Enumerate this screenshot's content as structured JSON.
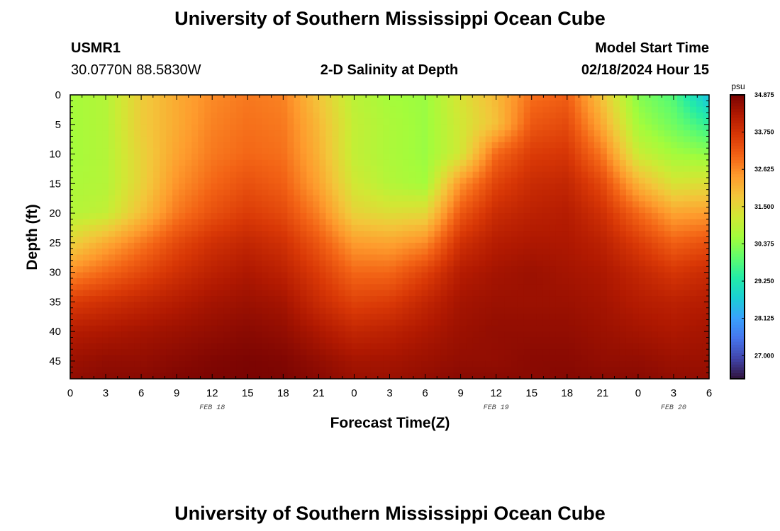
{
  "header": {
    "title": "University of Southern Mississippi Ocean Cube",
    "station_id": "USMR1",
    "station_coords": "30.0770N  88.5830W",
    "plot_title": "2-D Salinity at Depth",
    "start_time_label": "Model Start Time",
    "start_time_value": "02/18/2024 Hour 15"
  },
  "footer": {
    "title": "University of Southern Mississippi Ocean Cube"
  },
  "chart_data": {
    "type": "heatmap",
    "title": "2-D Salinity at Depth",
    "xlabel": "Forecast Time(Z)",
    "ylabel": "Depth (ft)",
    "x_ticks": [
      "0",
      "3",
      "6",
      "9",
      "12",
      "15",
      "18",
      "21",
      "0",
      "3",
      "6",
      "9",
      "12",
      "15",
      "18",
      "21",
      "0",
      "3",
      "6"
    ],
    "date_labels": [
      {
        "text": "FEB 18",
        "hour": 12
      },
      {
        "text": "FEB 19",
        "hour": 36
      },
      {
        "text": "FEB 20",
        "hour": 51
      }
    ],
    "x_range_hours": [
      0,
      54
    ],
    "y_ticks": [
      0,
      5,
      10,
      15,
      20,
      25,
      30,
      35,
      40,
      45
    ],
    "ylim": [
      48,
      0
    ],
    "colorbar": {
      "unit": "psu",
      "vmin": 26.3,
      "vmax": 34.875,
      "labels": [
        "34.875",
        "33.750",
        "32.625",
        "31.500",
        "30.375",
        "29.250",
        "28.125",
        "27.000"
      ],
      "label_values": [
        34.875,
        33.75,
        32.625,
        31.5,
        30.375,
        29.25,
        28.125,
        27.0
      ]
    },
    "colormap": [
      "#30123b",
      "#4145ab",
      "#4675ed",
      "#39a2fc",
      "#1bcfd4",
      "#24eca6",
      "#61fc6c",
      "#a4fc3b",
      "#d1e834",
      "#f3c63a",
      "#fe9b2d",
      "#f36315",
      "#d93806",
      "#b11901",
      "#7a0402"
    ],
    "x_hours": [
      0,
      3,
      6,
      9,
      12,
      15,
      18,
      21,
      24,
      27,
      30,
      33,
      36,
      39,
      42,
      45,
      48,
      51,
      54
    ],
    "depths_ft": [
      0,
      5,
      10,
      15,
      20,
      25,
      30,
      35,
      40,
      45,
      48
    ],
    "salinity_psu": [
      [
        30.6,
        30.8,
        31.7,
        32.2,
        32.6,
        32.8,
        32.7,
        31.8,
        30.9,
        30.6,
        30.5,
        31.3,
        32.0,
        32.9,
        33.1,
        31.8,
        30.3,
        29.8,
        28.5
      ],
      [
        30.6,
        30.8,
        31.7,
        32.2,
        32.7,
        32.9,
        32.8,
        32.0,
        31.0,
        30.7,
        30.5,
        31.2,
        31.9,
        33.2,
        33.4,
        32.2,
        30.6,
        30.1,
        29.5
      ],
      [
        30.6,
        30.8,
        31.6,
        32.3,
        32.8,
        33.0,
        32.9,
        32.1,
        31.0,
        30.7,
        30.5,
        31.2,
        33.0,
        33.6,
        33.7,
        32.8,
        31.1,
        30.6,
        30.4
      ],
      [
        30.7,
        30.8,
        31.6,
        32.5,
        33.0,
        33.3,
        33.1,
        32.3,
        31.2,
        30.8,
        30.6,
        32.5,
        33.5,
        33.9,
        34.0,
        33.4,
        32.1,
        31.3,
        31.4
      ],
      [
        30.8,
        31.0,
        31.9,
        32.8,
        33.3,
        33.6,
        33.4,
        32.7,
        31.6,
        31.4,
        31.5,
        33.2,
        33.9,
        34.1,
        34.2,
        33.8,
        33.0,
        32.3,
        32.4
      ],
      [
        31.6,
        32.2,
        32.8,
        33.4,
        33.8,
        34.0,
        33.8,
        33.2,
        32.4,
        32.3,
        32.6,
        33.8,
        34.2,
        34.3,
        34.3,
        34.1,
        33.6,
        33.1,
        33.3
      ],
      [
        32.6,
        33.0,
        33.4,
        33.8,
        34.1,
        34.3,
        34.1,
        33.6,
        33.0,
        33.0,
        33.5,
        34.2,
        34.4,
        34.5,
        34.4,
        34.3,
        34.0,
        33.7,
        33.9
      ],
      [
        33.6,
        33.8,
        34.0,
        34.2,
        34.4,
        34.5,
        34.4,
        33.9,
        33.5,
        33.6,
        34.0,
        34.4,
        34.5,
        34.5,
        34.5,
        34.4,
        34.2,
        34.1,
        34.2
      ],
      [
        34.2,
        34.3,
        34.4,
        34.5,
        34.6,
        34.7,
        34.6,
        34.3,
        34.0,
        34.1,
        34.3,
        34.5,
        34.6,
        34.6,
        34.6,
        34.5,
        34.4,
        34.3,
        34.4
      ],
      [
        34.5,
        34.6,
        34.6,
        34.7,
        34.8,
        34.85,
        34.8,
        34.6,
        34.4,
        34.4,
        34.5,
        34.6,
        34.6,
        34.7,
        34.7,
        34.6,
        34.6,
        34.5,
        34.5
      ],
      [
        34.6,
        34.7,
        34.7,
        34.8,
        34.85,
        34.875,
        34.85,
        34.7,
        34.5,
        34.5,
        34.6,
        34.7,
        34.7,
        34.7,
        34.75,
        34.7,
        34.7,
        34.6,
        34.6
      ]
    ]
  }
}
